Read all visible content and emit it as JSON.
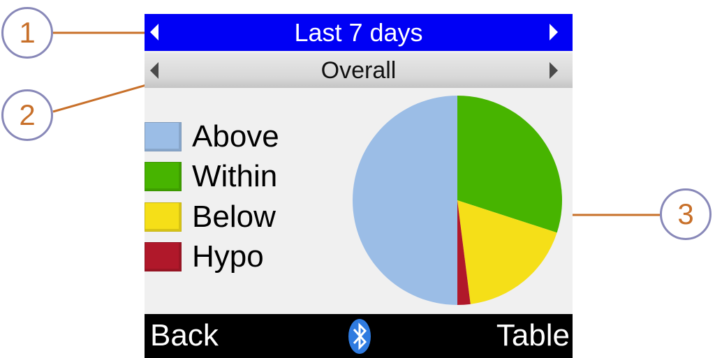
{
  "header": {
    "period_label": "Last 7 days"
  },
  "subheader": {
    "category_label": "Overall"
  },
  "legend": [
    {
      "label": "Above",
      "color": "#9bbde6"
    },
    {
      "label": "Within",
      "color": "#47b400"
    },
    {
      "label": "Below",
      "color": "#f5df18"
    },
    {
      "label": "Hypo",
      "color": "#b0182a"
    }
  ],
  "chart_data": {
    "type": "pie",
    "slices": [
      {
        "name": "Within",
        "value": 30,
        "color": "#47b400"
      },
      {
        "name": "Below",
        "value": 18,
        "color": "#f5df18"
      },
      {
        "name": "Hypo",
        "value": 2,
        "color": "#b0182a"
      },
      {
        "name": "Above",
        "value": 50,
        "color": "#9bbde6"
      }
    ],
    "start_angle_deg": 0,
    "direction": "clockwise"
  },
  "footer": {
    "back_label": "Back",
    "table_label": "Table",
    "icon": "bluetooth-icon"
  },
  "callouts": [
    {
      "number": "1"
    },
    {
      "number": "2"
    },
    {
      "number": "3"
    }
  ],
  "colors": {
    "header_bg": "#0000f5",
    "footer_bg": "#000000",
    "screen_bg": "#f0f0f0",
    "callout_text": "#c8702a",
    "callout_border": "#8888b8"
  }
}
